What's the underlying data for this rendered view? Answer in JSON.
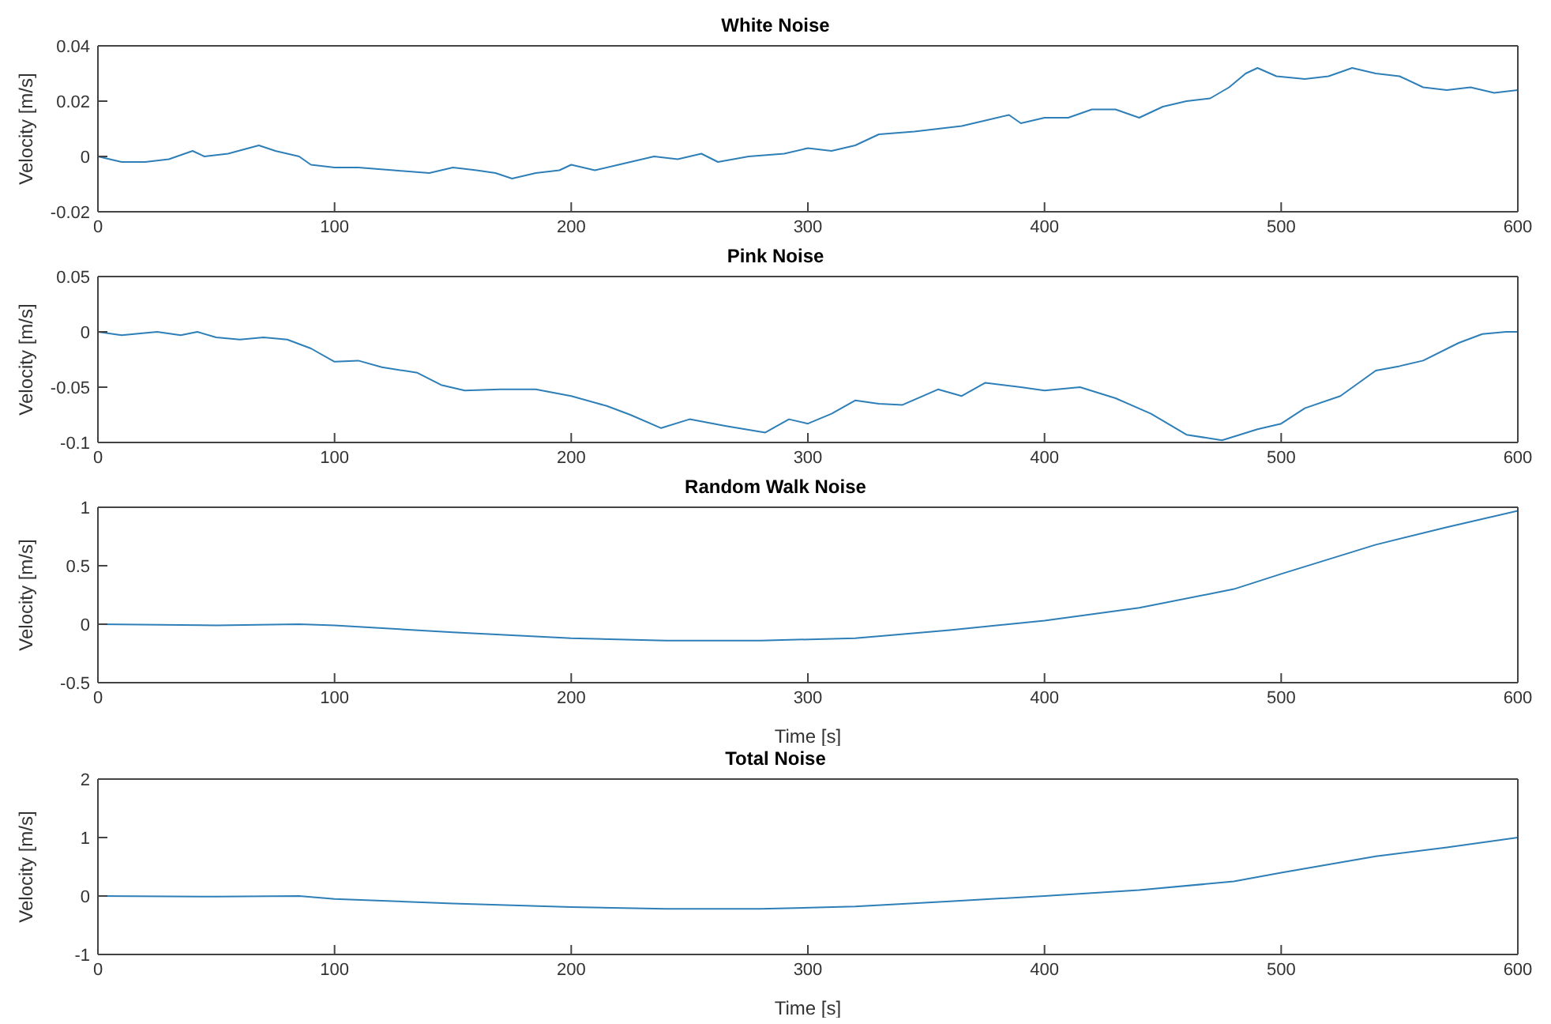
{
  "chart_data": [
    {
      "type": "line",
      "title": "White Noise",
      "ylabel": "Velocity [m/s]",
      "color": "#2e7fb8",
      "xlim": [
        0,
        600
      ],
      "xticks": [
        0,
        100,
        200,
        300,
        400,
        500,
        600
      ],
      "ylim": [
        -0.02,
        0.04
      ],
      "yticks": [
        -0.02,
        0,
        0.02,
        0.04
      ],
      "x": [
        0,
        5,
        10,
        20,
        30,
        40,
        45,
        55,
        68,
        75,
        85,
        90,
        100,
        110,
        125,
        140,
        150,
        160,
        168,
        175,
        185,
        195,
        200,
        210,
        220,
        235,
        245,
        255,
        262,
        275,
        290,
        300,
        310,
        320,
        330,
        345,
        355,
        365,
        375,
        385,
        390,
        400,
        410,
        420,
        430,
        440,
        450,
        460,
        470,
        478,
        485,
        490,
        498,
        510,
        520,
        530,
        540,
        550,
        560,
        570,
        580,
        590,
        600
      ],
      "values": [
        0,
        -0.001,
        -0.002,
        -0.002,
        -0.001,
        0.002,
        0,
        0.001,
        0.004,
        0.002,
        0,
        -0.003,
        -0.004,
        -0.004,
        -0.005,
        -0.006,
        -0.004,
        -0.005,
        -0.006,
        -0.008,
        -0.006,
        -0.005,
        -0.003,
        -0.005,
        -0.003,
        0,
        -0.001,
        0.001,
        -0.002,
        0,
        0.001,
        0.003,
        0.002,
        0.004,
        0.008,
        0.009,
        0.01,
        0.011,
        0.013,
        0.015,
        0.012,
        0.014,
        0.014,
        0.017,
        0.017,
        0.014,
        0.018,
        0.02,
        0.021,
        0.025,
        0.03,
        0.032,
        0.029,
        0.028,
        0.029,
        0.032,
        0.03,
        0.029,
        0.025,
        0.024,
        0.025,
        0.023,
        0.024
      ]
    },
    {
      "type": "line",
      "title": "Pink Noise",
      "ylabel": "Velocity [m/s]",
      "color": "#2e7fb8",
      "xlim": [
        0,
        600
      ],
      "xticks": [
        0,
        100,
        200,
        300,
        400,
        500,
        600
      ],
      "ylim": [
        -0.1,
        0.05
      ],
      "yticks": [
        -0.1,
        -0.05,
        0,
        0.05
      ],
      "x": [
        0,
        10,
        25,
        35,
        42,
        50,
        60,
        70,
        80,
        90,
        100,
        110,
        120,
        135,
        145,
        155,
        170,
        185,
        200,
        215,
        225,
        238,
        250,
        265,
        282,
        292,
        300,
        310,
        320,
        330,
        340,
        355,
        365,
        375,
        390,
        400,
        415,
        430,
        445,
        460,
        475,
        490,
        500,
        510,
        525,
        540,
        550,
        560,
        575,
        585,
        595,
        600
      ],
      "values": [
        0,
        -0.003,
        0,
        -0.003,
        0,
        -0.005,
        -0.007,
        -0.005,
        -0.007,
        -0.015,
        -0.027,
        -0.026,
        -0.032,
        -0.037,
        -0.048,
        -0.053,
        -0.052,
        -0.052,
        -0.058,
        -0.067,
        -0.075,
        -0.087,
        -0.079,
        -0.085,
        -0.091,
        -0.079,
        -0.083,
        -0.074,
        -0.062,
        -0.065,
        -0.066,
        -0.052,
        -0.058,
        -0.046,
        -0.05,
        -0.053,
        -0.05,
        -0.06,
        -0.074,
        -0.093,
        -0.098,
        -0.088,
        -0.083,
        -0.069,
        -0.058,
        -0.035,
        -0.031,
        -0.026,
        -0.01,
        -0.002,
        0,
        0
      ]
    },
    {
      "type": "line",
      "title": "Random Walk Noise",
      "xlabel": "Time [s]",
      "ylabel": "Velocity [m/s]",
      "color": "#2e7fb8",
      "xlim": [
        0,
        600
      ],
      "xticks": [
        0,
        100,
        200,
        300,
        400,
        500,
        600
      ],
      "ylim": [
        -0.5,
        1
      ],
      "yticks": [
        -0.5,
        0,
        0.5,
        1
      ],
      "x": [
        0,
        50,
        85,
        100,
        150,
        200,
        240,
        280,
        320,
        360,
        400,
        440,
        480,
        500,
        540,
        570,
        600
      ],
      "values": [
        0,
        -0.01,
        0,
        -0.01,
        -0.07,
        -0.12,
        -0.14,
        -0.14,
        -0.12,
        -0.05,
        0.03,
        0.14,
        0.3,
        0.43,
        0.68,
        0.83,
        0.97
      ]
    },
    {
      "type": "line",
      "title": "Total Noise",
      "xlabel": "Time [s]",
      "ylabel": "Velocity [m/s]",
      "color": "#2e7fb8",
      "xlim": [
        0,
        600
      ],
      "xticks": [
        0,
        100,
        200,
        300,
        400,
        500,
        600
      ],
      "ylim": [
        -1,
        2
      ],
      "yticks": [
        -1,
        0,
        1,
        2
      ],
      "x": [
        0,
        50,
        85,
        100,
        150,
        200,
        240,
        280,
        320,
        360,
        400,
        440,
        480,
        500,
        540,
        570,
        600
      ],
      "values": [
        0,
        -0.01,
        0,
        -0.05,
        -0.13,
        -0.19,
        -0.22,
        -0.22,
        -0.18,
        -0.09,
        0,
        0.1,
        0.25,
        0.4,
        0.68,
        0.83,
        1
      ]
    }
  ]
}
